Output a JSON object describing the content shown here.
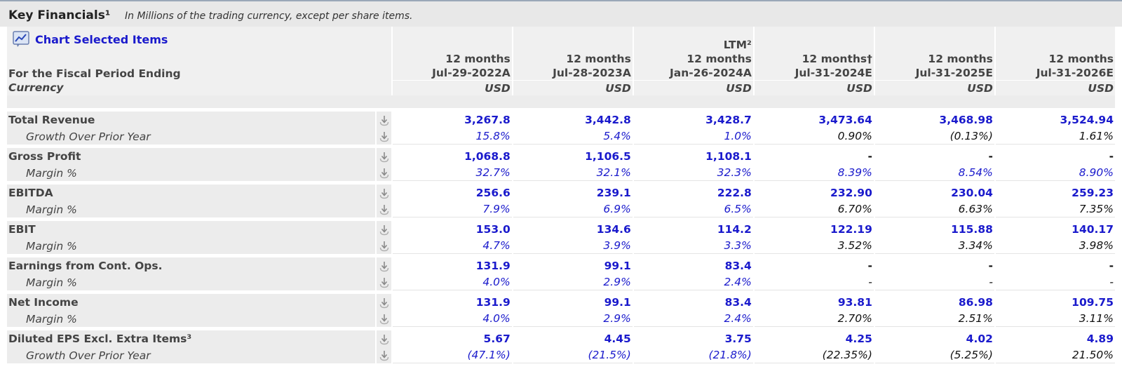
{
  "header": {
    "title": "Key Financials¹",
    "subtitle": "In Millions of the trading currency, except per share items."
  },
  "chart_link": {
    "label": "Chart Selected Items",
    "icon": "chart-icon"
  },
  "period_label": "For the Fiscal Period Ending",
  "currency_label": "Currency",
  "columns": [
    {
      "line1": "",
      "line2": "12 months",
      "line3": "Jul-29-2022A",
      "currency": "USD"
    },
    {
      "line1": "",
      "line2": "12 months",
      "line3": "Jul-28-2023A",
      "currency": "USD"
    },
    {
      "line1": "LTM²",
      "line2": "12 months",
      "line3": "Jan-26-2024A",
      "currency": "USD"
    },
    {
      "line1": "",
      "line2": "12 months†",
      "line3": "Jul-31-2024E",
      "currency": "USD"
    },
    {
      "line1": "",
      "line2": "12 months",
      "line3": "Jul-31-2025E",
      "currency": "USD"
    },
    {
      "line1": "",
      "line2": "12 months",
      "line3": "Jul-31-2026E",
      "currency": "USD"
    }
  ],
  "rows": [
    {
      "type": "main",
      "label": "Total Revenue",
      "values": [
        "3,267.8",
        "3,442.8",
        "3,428.7",
        "3,473.64",
        "3,468.98",
        "3,524.94"
      ],
      "colors": [
        "blue",
        "blue",
        "blue",
        "blue",
        "blue",
        "blue"
      ]
    },
    {
      "type": "sub",
      "label": "Growth Over Prior Year",
      "values": [
        "15.8%",
        "5.4%",
        "1.0%",
        "0.90%",
        "(0.13%)",
        "1.61%"
      ],
      "colors": [
        "blue",
        "blue",
        "blue",
        "black",
        "black",
        "black"
      ]
    },
    {
      "type": "main",
      "label": "Gross Profit",
      "values": [
        "1,068.8",
        "1,106.5",
        "1,108.1",
        "-",
        "-",
        "-"
      ],
      "colors": [
        "blue",
        "blue",
        "blue",
        "black",
        "black",
        "black"
      ]
    },
    {
      "type": "sub",
      "label": "Margin %",
      "values": [
        "32.7%",
        "32.1%",
        "32.3%",
        "8.39%",
        "8.54%",
        "8.90%"
      ],
      "colors": [
        "blue",
        "blue",
        "blue",
        "blue",
        "blue",
        "blue"
      ]
    },
    {
      "type": "main",
      "label": "EBITDA",
      "values": [
        "256.6",
        "239.1",
        "222.8",
        "232.90",
        "230.04",
        "259.23"
      ],
      "colors": [
        "blue",
        "blue",
        "blue",
        "blue",
        "blue",
        "blue"
      ]
    },
    {
      "type": "sub",
      "label": "Margin %",
      "values": [
        "7.9%",
        "6.9%",
        "6.5%",
        "6.70%",
        "6.63%",
        "7.35%"
      ],
      "colors": [
        "blue",
        "blue",
        "blue",
        "black",
        "black",
        "black"
      ]
    },
    {
      "type": "main",
      "label": "EBIT",
      "values": [
        "153.0",
        "134.6",
        "114.2",
        "122.19",
        "115.88",
        "140.17"
      ],
      "colors": [
        "blue",
        "blue",
        "blue",
        "blue",
        "blue",
        "blue"
      ]
    },
    {
      "type": "sub",
      "label": "Margin %",
      "values": [
        "4.7%",
        "3.9%",
        "3.3%",
        "3.52%",
        "3.34%",
        "3.98%"
      ],
      "colors": [
        "blue",
        "blue",
        "blue",
        "black",
        "black",
        "black"
      ]
    },
    {
      "type": "main",
      "label": "Earnings from Cont. Ops.",
      "values": [
        "131.9",
        "99.1",
        "83.4",
        "-",
        "-",
        "-"
      ],
      "colors": [
        "blue",
        "blue",
        "blue",
        "black",
        "black",
        "black"
      ]
    },
    {
      "type": "sub",
      "label": "Margin %",
      "values": [
        "4.0%",
        "2.9%",
        "2.4%",
        "-",
        "-",
        "-"
      ],
      "colors": [
        "blue",
        "blue",
        "blue",
        "black",
        "black",
        "black"
      ]
    },
    {
      "type": "main",
      "label": "Net Income",
      "values": [
        "131.9",
        "99.1",
        "83.4",
        "93.81",
        "86.98",
        "109.75"
      ],
      "colors": [
        "blue",
        "blue",
        "blue",
        "blue",
        "blue",
        "blue"
      ]
    },
    {
      "type": "sub",
      "label": "Margin %",
      "values": [
        "4.0%",
        "2.9%",
        "2.4%",
        "2.70%",
        "2.51%",
        "3.11%"
      ],
      "colors": [
        "blue",
        "blue",
        "blue",
        "black",
        "black",
        "black"
      ]
    },
    {
      "type": "main",
      "label": "Diluted EPS Excl. Extra Items³",
      "values": [
        "5.67",
        "4.45",
        "3.75",
        "4.25",
        "4.02",
        "4.89"
      ],
      "colors": [
        "blue",
        "blue",
        "blue",
        "blue",
        "blue",
        "blue"
      ]
    },
    {
      "type": "sub",
      "label": "Growth Over Prior Year",
      "values": [
        "(47.1%)",
        "(21.5%)",
        "(21.8%)",
        "(22.35%)",
        "(5.25%)",
        "21.50%"
      ],
      "colors": [
        "blue",
        "blue",
        "blue",
        "black",
        "black",
        "black"
      ]
    }
  ],
  "colors": {
    "link_blue": "#1a1acc",
    "value_blue": "#1a1acc",
    "value_black": "#111111",
    "header_bg": "#f0f0f0",
    "label_bg": "#ececec"
  }
}
